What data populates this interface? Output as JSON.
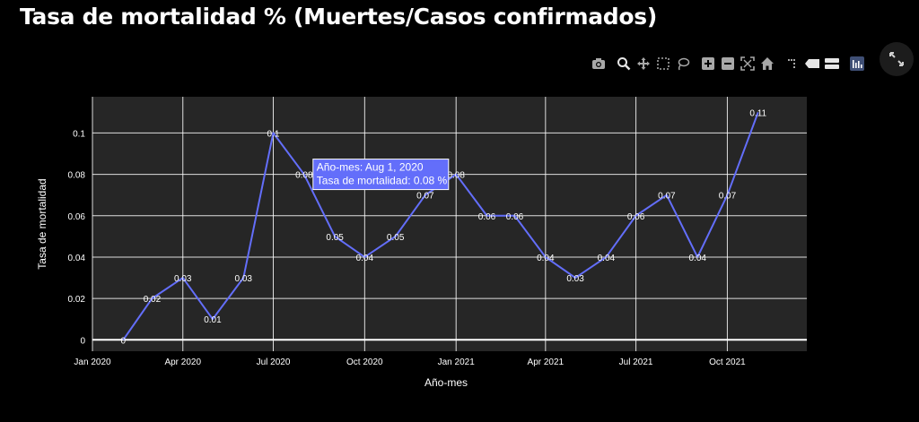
{
  "page": {
    "title": "Tasa de mortalidad % (Muertes/Casos confirmados)"
  },
  "toolbar": {
    "icons": [
      "camera-icon",
      "zoom-icon",
      "pan-icon",
      "box-select-icon",
      "lasso-select-icon",
      "zoom-in-icon",
      "zoom-out-icon",
      "autoscale-icon",
      "reset-axes-icon",
      "spike-lines-icon",
      "hover-closest-icon",
      "hover-compare-icon",
      "plotly-logo-icon"
    ],
    "expand_icon": "fullscreen-expand-icon"
  },
  "colors": {
    "background": "#000000",
    "plot_background": "#262626",
    "grid": "#ffffff",
    "line": "#636efa",
    "tooltip_bg": "#636efa",
    "text": "#ffffff",
    "toolbar_icon": "#a8a8a8"
  },
  "chart_data": {
    "type": "line",
    "title": "Tasa de mortalidad % (Muertes/Casos confirmados)",
    "xlabel": "Año-mes",
    "ylabel": "Tasa de mortalidad",
    "x": [
      "2020-02-01",
      "2020-03-01",
      "2020-04-01",
      "2020-05-01",
      "2020-06-01",
      "2020-07-01",
      "2020-08-01",
      "2020-09-01",
      "2020-10-01",
      "2020-11-01",
      "2020-12-01",
      "2021-01-01",
      "2021-02-01",
      "2021-03-01",
      "2021-04-01",
      "2021-05-01",
      "2021-06-01",
      "2021-07-01",
      "2021-08-01",
      "2021-09-01",
      "2021-10-01",
      "2021-11-01"
    ],
    "values": [
      0,
      0.02,
      0.03,
      0.01,
      0.03,
      0.1,
      0.08,
      0.05,
      0.04,
      0.05,
      0.07,
      0.08,
      0.06,
      0.06,
      0.04,
      0.03,
      0.04,
      0.06,
      0.07,
      0.04,
      0.07,
      0.11
    ],
    "point_labels": [
      "0",
      "0.02",
      "0.03",
      "0.01",
      "0.03",
      "0.1",
      "0.08",
      "0.05",
      "0.04",
      "0.05",
      "0.07",
      "0.08",
      "0.06",
      "0.06",
      "0.04",
      "0.03",
      "0.04",
      "0.06",
      "0.07",
      "0.04",
      "0.07",
      "0.11"
    ],
    "x_ticks": [
      {
        "date": "2020-01-01",
        "label": "Jan 2020"
      },
      {
        "date": "2020-04-01",
        "label": "Apr 2020"
      },
      {
        "date": "2020-07-01",
        "label": "Jul 2020"
      },
      {
        "date": "2020-10-01",
        "label": "Oct 2020"
      },
      {
        "date": "2021-01-01",
        "label": "Jan 2021"
      },
      {
        "date": "2021-04-01",
        "label": "Apr 2021"
      },
      {
        "date": "2021-07-01",
        "label": "Jul 2021"
      },
      {
        "date": "2021-10-01",
        "label": "Oct 2021"
      }
    ],
    "y_ticks": [
      0,
      0.02,
      0.04,
      0.06,
      0.08,
      0.1
    ],
    "y_tick_labels": [
      "0",
      "0.02",
      "0.04",
      "0.06",
      "0.08",
      "0.1"
    ],
    "xlim": [
      "2020-01-01",
      "2021-12-20"
    ],
    "ylim": [
      -0.0055,
      0.1175
    ],
    "grid": true,
    "tooltip": {
      "date": "2020-08-01",
      "line1": "Año-mes: Aug 1, 2020",
      "line2": "Tasa de mortalidad: 0.08 %"
    }
  }
}
